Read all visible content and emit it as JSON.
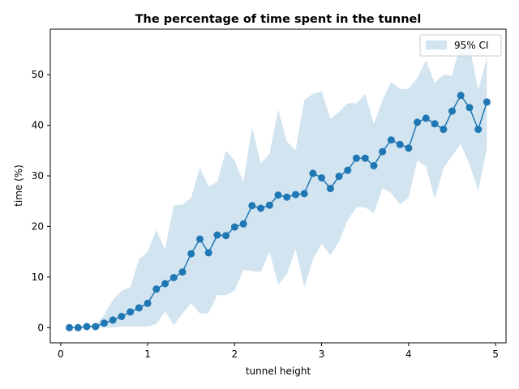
{
  "chart_data": {
    "type": "line",
    "title": "The percentage of time spent in the tunnel",
    "xlabel": "tunnel height",
    "ylabel": "time (%)",
    "xlim": [
      -0.12,
      5.12
    ],
    "ylim": [
      -3,
      59
    ],
    "xticks": [
      0,
      1,
      2,
      3,
      4,
      5
    ],
    "yticks": [
      0,
      10,
      20,
      30,
      40,
      50
    ],
    "grid": false,
    "legend": {
      "placement": "top-right",
      "entries": [
        "95% CI"
      ]
    },
    "series": [
      {
        "x": [
          0.1,
          0.2,
          0.3,
          0.4,
          0.5,
          0.6,
          0.7,
          0.8,
          0.9,
          1.0,
          1.1,
          1.2,
          1.3,
          1.4,
          1.5,
          1.6,
          1.7,
          1.8,
          1.9,
          2.0,
          2.1,
          2.2,
          2.3,
          2.4,
          2.5,
          2.6,
          2.7,
          2.8,
          2.9,
          3.0,
          3.1,
          3.2,
          3.3,
          3.4,
          3.5,
          3.6,
          3.7,
          3.8,
          3.9,
          4.0,
          4.1,
          4.2,
          4.3,
          4.4,
          4.5,
          4.6,
          4.7,
          4.8,
          4.9
        ],
        "values": [
          0,
          0,
          0.2,
          0.2,
          0.9,
          1.5,
          2.2,
          3.1,
          3.9,
          4.8,
          7.6,
          8.7,
          9.9,
          11,
          14.6,
          17.5,
          14.8,
          18.3,
          18.2,
          19.9,
          20.5,
          24.1,
          23.6,
          24.2,
          26.2,
          25.8,
          26.3,
          26.5,
          30.5,
          29.6,
          27.5,
          29.9,
          31.1,
          33.5,
          33.5,
          32,
          34.8,
          37.1,
          36.2,
          35.5,
          40.6,
          41.4,
          40.3,
          39.2,
          42.8,
          45.9,
          43.5,
          39.2,
          44.6
        ],
        "ci_lower": [
          0,
          0,
          0,
          0,
          0,
          0,
          0.2,
          0.2,
          0.2,
          0.2,
          0.7,
          3.2,
          0.5,
          2.8,
          4.8,
          2.8,
          2.9,
          6.4,
          6.4,
          7.3,
          11.4,
          11.2,
          11.0,
          15.0,
          8.5,
          10.5,
          15.6,
          7.9,
          13.5,
          16.6,
          14.3,
          17.0,
          21.2,
          23.8,
          23.8,
          22.6,
          27.6,
          26.6,
          24.4,
          25.7,
          33.1,
          31.9,
          25.4,
          31.5,
          34.0,
          36.3,
          32.2,
          27.1,
          35.4
        ],
        "ci_upper": [
          0,
          0,
          0.5,
          0.5,
          2.5,
          5.5,
          7.3,
          8.0,
          13.5,
          15.0,
          19.3,
          15.5,
          24.2,
          24.3,
          25.7,
          31.6,
          27.9,
          28.8,
          35.0,
          33.0,
          28.8,
          39.6,
          32.5,
          34.3,
          43.1,
          36.8,
          35.1,
          45.0,
          46.2,
          46.7,
          41.3,
          42.6,
          44.4,
          44.3,
          46.2,
          40.3,
          45.0,
          48.6,
          47.2,
          47.2,
          49.4,
          52.8,
          48.4,
          50.0,
          49.8,
          56.5,
          55.7,
          47.0,
          53.4
        ]
      }
    ],
    "colors": {
      "line": "#1f77b4",
      "band": "#1f77b4"
    }
  }
}
